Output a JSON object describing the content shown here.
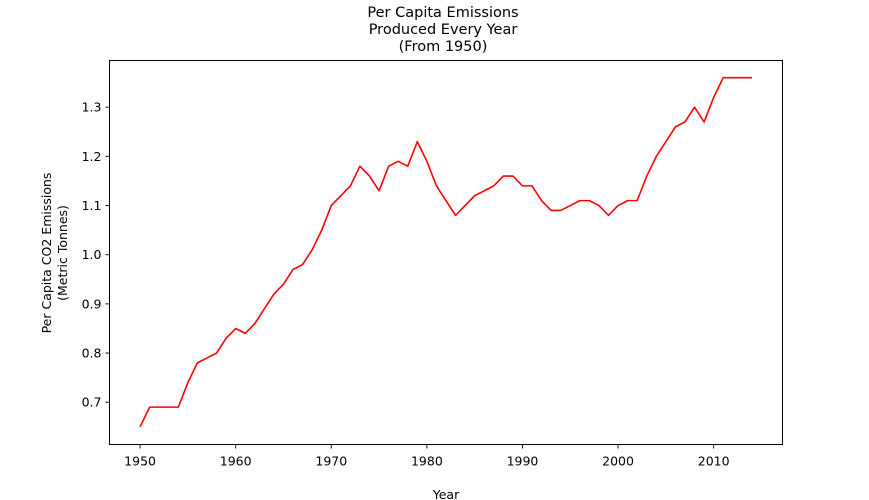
{
  "chart_data": {
    "type": "line",
    "title_lines": [
      "Per Capita Emissions",
      "Produced Every Year",
      "(From 1950)"
    ],
    "xlabel": "Year",
    "ylabel_lines": [
      "Per Capita CO2 Emissions",
      "(Metric Tonnes)"
    ],
    "xlim": [
      1946.8,
      2017.2
    ],
    "ylim": [
      0.614,
      1.395
    ],
    "x_ticks": [
      1950,
      1960,
      1970,
      1980,
      1990,
      2000,
      2010
    ],
    "y_ticks": [
      0.7,
      0.8,
      0.9,
      1.0,
      1.1,
      1.2,
      1.3
    ],
    "y_tick_labels": [
      "0.7",
      "0.8",
      "0.9",
      "1.0",
      "1.1",
      "1.2",
      "1.3"
    ],
    "grid": false,
    "line_color": "#ff0000",
    "series": [
      {
        "x": [
          1950,
          1951,
          1952,
          1953,
          1954,
          1955,
          1956,
          1957,
          1958,
          1959,
          1960,
          1961,
          1962,
          1963,
          1964,
          1965,
          1966,
          1967,
          1968,
          1969,
          1970,
          1971,
          1972,
          1973,
          1974,
          1975,
          1976,
          1977,
          1978,
          1979,
          1980,
          1981,
          1982,
          1983,
          1984,
          1985,
          1986,
          1987,
          1988,
          1989,
          1990,
          1991,
          1992,
          1993,
          1994,
          1995,
          1996,
          1997,
          1998,
          1999,
          2000,
          2001,
          2002,
          2003,
          2004,
          2005,
          2006,
          2007,
          2008,
          2009,
          2010,
          2011,
          2012,
          2013,
          2014
        ],
        "values": [
          0.65,
          0.69,
          0.69,
          0.69,
          0.69,
          0.74,
          0.78,
          0.79,
          0.8,
          0.83,
          0.85,
          0.84,
          0.86,
          0.89,
          0.92,
          0.94,
          0.97,
          0.98,
          1.01,
          1.05,
          1.1,
          1.12,
          1.14,
          1.18,
          1.16,
          1.13,
          1.18,
          1.19,
          1.18,
          1.23,
          1.19,
          1.14,
          1.11,
          1.08,
          1.1,
          1.12,
          1.13,
          1.14,
          1.16,
          1.16,
          1.14,
          1.14,
          1.11,
          1.09,
          1.09,
          1.1,
          1.11,
          1.11,
          1.1,
          1.08,
          1.1,
          1.11,
          1.11,
          1.16,
          1.2,
          1.23,
          1.26,
          1.27,
          1.3,
          1.27,
          1.32,
          1.36,
          1.36,
          1.36,
          1.36
        ]
      }
    ]
  }
}
